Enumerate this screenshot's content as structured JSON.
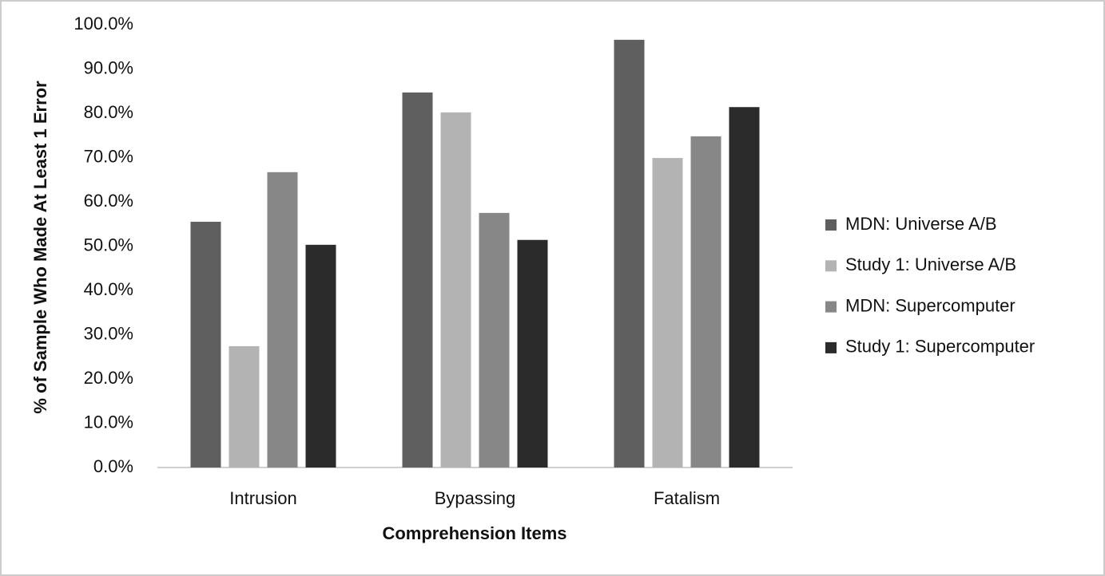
{
  "chart_data": {
    "type": "bar",
    "x_label": "Comprehension Items",
    "y_label": "% of Sample Who Made At Least 1 Error",
    "categories": [
      "Intrusion",
      "Bypassing",
      "Fatalism"
    ],
    "series": [
      {
        "name": "MDN: Universe A/B",
        "color": "#5f5f5f",
        "values": [
          55.5,
          84.7,
          96.6
        ]
      },
      {
        "name": "Study 1: Universe A/B",
        "color": "#b3b3b3",
        "values": [
          27.4,
          80.2,
          69.9
        ]
      },
      {
        "name": "MDN: Supercomputer",
        "color": "#878787",
        "values": [
          66.7,
          57.5,
          74.8
        ]
      },
      {
        "name": "Study 1: Supercomputer",
        "color": "#2b2b2b",
        "values": [
          50.3,
          51.4,
          81.4
        ]
      }
    ],
    "ylim": [
      0,
      100
    ],
    "yticks": [
      {
        "value": 0,
        "label": "0.0%"
      },
      {
        "value": 10,
        "label": "10.0%"
      },
      {
        "value": 20,
        "label": "20.0%"
      },
      {
        "value": 30,
        "label": "30.0%"
      },
      {
        "value": 40,
        "label": "40.0%"
      },
      {
        "value": 50,
        "label": "50.0%"
      },
      {
        "value": 60,
        "label": "60.0%"
      },
      {
        "value": 70,
        "label": "70.0%"
      },
      {
        "value": 80,
        "label": "80.0%"
      },
      {
        "value": 90,
        "label": "90.0%"
      },
      {
        "value": 100,
        "label": "100.0%"
      }
    ],
    "grid": false,
    "legend": "right"
  }
}
